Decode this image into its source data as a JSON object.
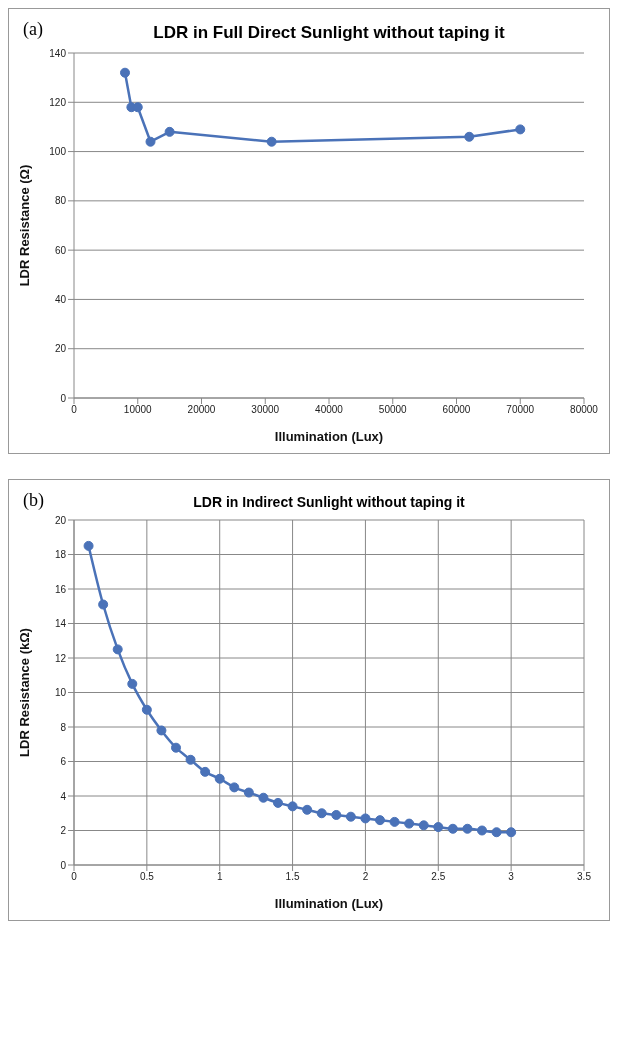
{
  "chart_data": [
    {
      "type": "line",
      "title": "LDR in Full Direct Sunlight without taping it",
      "xlabel": "Illumination (Lux)",
      "ylabel": "LDR Resistance (Ω)",
      "annotations": [
        "(a)"
      ],
      "x": [
        8000,
        9000,
        10000,
        12000,
        15000,
        31000,
        62000,
        70000
      ],
      "series": [
        {
          "color": "#4a72b8",
          "values": [
            132,
            118,
            118,
            104,
            108,
            104,
            106,
            109
          ]
        }
      ],
      "xlim": [
        0,
        80000
      ],
      "xticks": [
        0,
        10000,
        20000,
        30000,
        40000,
        50000,
        60000,
        70000,
        80000
      ],
      "ylim": [
        0,
        140
      ],
      "yticks": [
        0,
        20,
        40,
        60,
        80,
        100,
        120,
        140
      ],
      "grid": "y",
      "marker": "circle",
      "line_style": "solid"
    },
    {
      "type": "line",
      "title": "LDR in Indirect Sunlight without taping it",
      "xlabel": "Illumination (Lux)",
      "ylabel": "LDR Resistance (kΩ)",
      "annotations": [
        "(b)"
      ],
      "x": [
        0.1,
        0.2,
        0.3,
        0.4,
        0.5,
        0.6,
        0.7,
        0.8,
        0.9,
        1.0,
        1.1,
        1.2,
        1.3,
        1.4,
        1.5,
        1.6,
        1.7,
        1.8,
        1.9,
        2.0,
        2.1,
        2.2,
        2.3,
        2.4,
        2.5,
        2.6,
        2.7,
        2.8,
        2.9,
        3.0
      ],
      "series": [
        {
          "color": "#4a72b8",
          "values": [
            18.5,
            15.1,
            12.5,
            10.5,
            9.0,
            7.8,
            6.8,
            6.1,
            5.4,
            5.0,
            4.5,
            4.2,
            3.9,
            3.6,
            3.4,
            3.2,
            3.0,
            2.9,
            2.8,
            2.7,
            2.6,
            2.5,
            2.4,
            2.3,
            2.2,
            2.1,
            2.1,
            2.0,
            1.9,
            1.9
          ]
        }
      ],
      "xlim": [
        0,
        3.5
      ],
      "xticks": [
        0,
        0.5,
        1,
        1.5,
        2,
        2.5,
        3,
        3.5
      ],
      "ylim": [
        0,
        20
      ],
      "yticks": [
        0,
        2,
        4,
        6,
        8,
        10,
        12,
        14,
        16,
        18,
        20
      ],
      "grid": true,
      "marker": "circle",
      "line_style": "solid"
    }
  ]
}
